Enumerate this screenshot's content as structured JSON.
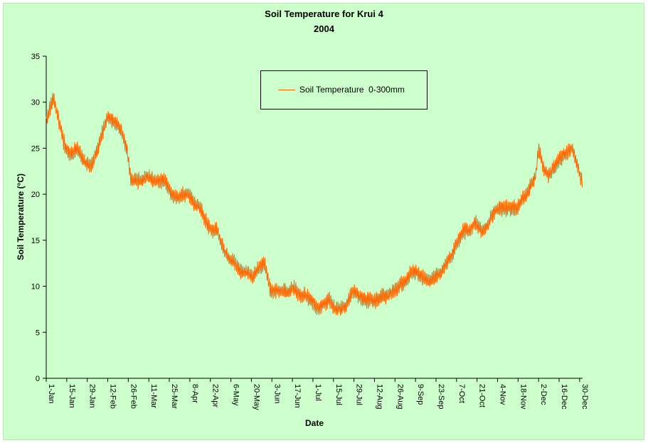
{
  "title": "Soil Temperature for Krui 4",
  "subtitle": "2004",
  "colors": {
    "background": "#ccffcc",
    "series": "#ff6600"
  },
  "chart_data": {
    "type": "line",
    "title": "Soil Temperature for Krui 4",
    "subtitle": "2004",
    "xlabel": "Date",
    "ylabel": "Soil Temperature (°C)",
    "ylim": [
      0,
      35
    ],
    "yticks": [
      0,
      5,
      10,
      15,
      20,
      25,
      30,
      35
    ],
    "xlim": [
      "2004-01-01",
      "2004-12-31"
    ],
    "xticks": [
      {
        "date": "2004-01-01",
        "label": "1-Jan"
      },
      {
        "date": "2004-01-15",
        "label": "15-Jan"
      },
      {
        "date": "2004-01-29",
        "label": "29-Jan"
      },
      {
        "date": "2004-02-12",
        "label": "12-Feb"
      },
      {
        "date": "2004-02-26",
        "label": "26-Feb"
      },
      {
        "date": "2004-03-11",
        "label": "11-Mar"
      },
      {
        "date": "2004-03-25",
        "label": "25-Mar"
      },
      {
        "date": "2004-04-08",
        "label": "8-Apr"
      },
      {
        "date": "2004-04-22",
        "label": "22-Apr"
      },
      {
        "date": "2004-05-06",
        "label": "6-May"
      },
      {
        "date": "2004-05-20",
        "label": "20-May"
      },
      {
        "date": "2004-06-03",
        "label": "3-Jun"
      },
      {
        "date": "2004-06-17",
        "label": "17-Jun"
      },
      {
        "date": "2004-07-01",
        "label": "1-Jul"
      },
      {
        "date": "2004-07-15",
        "label": "15-Jul"
      },
      {
        "date": "2004-07-29",
        "label": "29-Jul"
      },
      {
        "date": "2004-08-12",
        "label": "12-Aug"
      },
      {
        "date": "2004-08-26",
        "label": "26-Aug"
      },
      {
        "date": "2004-09-09",
        "label": "9-Sep"
      },
      {
        "date": "2004-09-23",
        "label": "23-Sep"
      },
      {
        "date": "2004-10-07",
        "label": "7-Oct"
      },
      {
        "date": "2004-10-21",
        "label": "21-Oct"
      },
      {
        "date": "2004-11-04",
        "label": "4-Nov"
      },
      {
        "date": "2004-11-18",
        "label": "18-Nov"
      },
      {
        "date": "2004-12-02",
        "label": "2-Dec"
      },
      {
        "date": "2004-12-16",
        "label": "16-Dec"
      },
      {
        "date": "2004-12-30",
        "label": "30-Dec"
      }
    ],
    "grid": false,
    "legend": "top-center",
    "series": [
      {
        "name": "Soil Temperature  0-300mm",
        "color": "#ff6600",
        "daily_range_approx": 1.5,
        "x": [
          "2004-01-01",
          "2004-01-04",
          "2004-01-06",
          "2004-01-08",
          "2004-01-11",
          "2004-01-14",
          "2004-01-18",
          "2004-01-22",
          "2004-01-25",
          "2004-01-28",
          "2004-01-31",
          "2004-02-03",
          "2004-02-06",
          "2004-02-09",
          "2004-02-12",
          "2004-02-15",
          "2004-02-19",
          "2004-02-22",
          "2004-02-25",
          "2004-02-28",
          "2004-03-02",
          "2004-03-06",
          "2004-03-10",
          "2004-03-14",
          "2004-03-18",
          "2004-03-22",
          "2004-03-26",
          "2004-03-30",
          "2004-04-03",
          "2004-04-07",
          "2004-04-11",
          "2004-04-15",
          "2004-04-19",
          "2004-04-23",
          "2004-04-27",
          "2004-05-01",
          "2004-05-05",
          "2004-05-09",
          "2004-05-13",
          "2004-05-17",
          "2004-05-21",
          "2004-05-25",
          "2004-05-29",
          "2004-06-02",
          "2004-06-06",
          "2004-06-10",
          "2004-06-14",
          "2004-06-18",
          "2004-06-22",
          "2004-06-26",
          "2004-06-30",
          "2004-07-04",
          "2004-07-08",
          "2004-07-12",
          "2004-07-16",
          "2004-07-20",
          "2004-07-24",
          "2004-07-28",
          "2004-08-01",
          "2004-08-05",
          "2004-08-09",
          "2004-08-13",
          "2004-08-17",
          "2004-08-21",
          "2004-08-25",
          "2004-08-29",
          "2004-09-02",
          "2004-09-06",
          "2004-09-10",
          "2004-09-14",
          "2004-09-18",
          "2004-09-22",
          "2004-09-26",
          "2004-09-30",
          "2004-10-04",
          "2004-10-08",
          "2004-10-12",
          "2004-10-16",
          "2004-10-20",
          "2004-10-24",
          "2004-10-28",
          "2004-11-01",
          "2004-11-05",
          "2004-11-09",
          "2004-11-13",
          "2004-11-17",
          "2004-11-21",
          "2004-11-24",
          "2004-11-27",
          "2004-11-30",
          "2004-12-02",
          "2004-12-05",
          "2004-12-09",
          "2004-12-13",
          "2004-12-17",
          "2004-12-21",
          "2004-12-25",
          "2004-12-28",
          "2004-12-31"
        ],
        "y": [
          28,
          29.5,
          30.5,
          29,
          27,
          25,
          24.3,
          25,
          24,
          23.5,
          23,
          24,
          25.5,
          27,
          28.5,
          28,
          27.5,
          26.5,
          25,
          21.5,
          21.5,
          21.5,
          22,
          21.5,
          21.5,
          21.5,
          20,
          19.5,
          20,
          20,
          19,
          18.5,
          17,
          16,
          16,
          14,
          13,
          12.5,
          11.5,
          11.5,
          11,
          12,
          12.5,
          9.5,
          9.5,
          9.5,
          9.5,
          10,
          9,
          9,
          8.5,
          7.5,
          8,
          8.5,
          7.5,
          7.5,
          8,
          9.5,
          9,
          8.5,
          8.5,
          8.5,
          9,
          9,
          9.5,
          10,
          10.5,
          11.5,
          11.5,
          11,
          10.5,
          11,
          11.5,
          12.5,
          13.5,
          15,
          16,
          16,
          17,
          16,
          16.5,
          18,
          18.5,
          18.5,
          18.5,
          18.5,
          19.5,
          20,
          21,
          22,
          25,
          23,
          22,
          23,
          24,
          24.5,
          25,
          23.5,
          21.5
        ]
      }
    ]
  }
}
